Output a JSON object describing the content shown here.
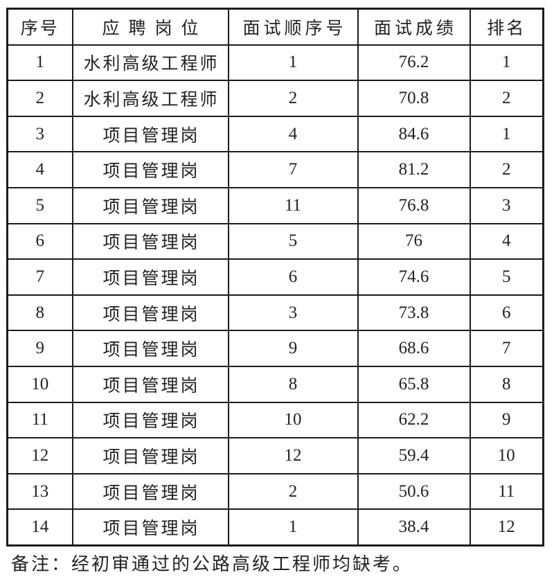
{
  "table": {
    "columns": [
      "序号",
      "应聘岗位",
      "面试顺序号",
      "面试成绩",
      "排名"
    ],
    "rows": [
      [
        "1",
        "水利高级工程师",
        "1",
        "76.2",
        "1"
      ],
      [
        "2",
        "水利高级工程师",
        "2",
        "70.8",
        "2"
      ],
      [
        "3",
        "项目管理岗",
        "4",
        "84.6",
        "1"
      ],
      [
        "4",
        "项目管理岗",
        "7",
        "81.2",
        "2"
      ],
      [
        "5",
        "项目管理岗",
        "11",
        "76.8",
        "3"
      ],
      [
        "6",
        "项目管理岗",
        "5",
        "76",
        "4"
      ],
      [
        "7",
        "项目管理岗",
        "6",
        "74.6",
        "5"
      ],
      [
        "8",
        "项目管理岗",
        "3",
        "73.8",
        "6"
      ],
      [
        "9",
        "项目管理岗",
        "9",
        "68.6",
        "7"
      ],
      [
        "10",
        "项目管理岗",
        "8",
        "65.8",
        "8"
      ],
      [
        "11",
        "项目管理岗",
        "10",
        "62.2",
        "9"
      ],
      [
        "12",
        "项目管理岗",
        "12",
        "59.4",
        "10"
      ],
      [
        "13",
        "项目管理岗",
        "2",
        "50.6",
        "11"
      ],
      [
        "14",
        "项目管理岗",
        "1",
        "38.4",
        "12"
      ]
    ]
  },
  "note": "备注：经初审通过的公路高级工程师均缺考。",
  "colors": {
    "text": "#222222",
    "border": "#1c1c1c",
    "background": "#ffffff"
  }
}
